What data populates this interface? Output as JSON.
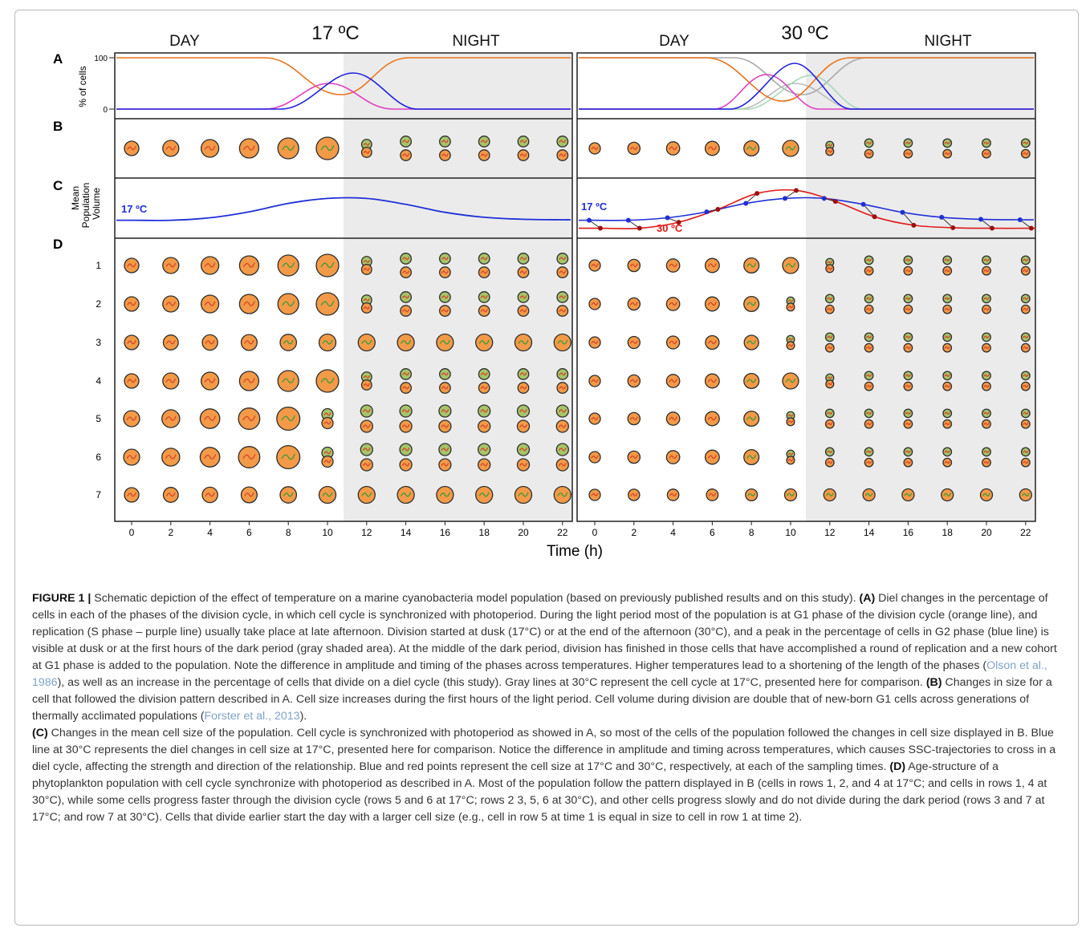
{
  "figure": {
    "panel_labels": [
      "A",
      "B",
      "C",
      "D"
    ],
    "left": {
      "temperature": "17 ºC",
      "day_label": "DAY",
      "night_label": "NIGHT"
    },
    "right": {
      "temperature": "30 ºC",
      "day_label": "DAY",
      "night_label": "NIGHT"
    },
    "a_ylabel": "% of cells",
    "a_ticks": [
      "100",
      "0"
    ],
    "c_ylabel_line1": "Mean",
    "c_ylabel_line2": "Population",
    "c_ylabel_line3": "Volume",
    "c_left_series_label": "17 ºC",
    "c_right_label_17": "17 ºC",
    "c_right_label_30": "30 ºC",
    "row_labels": [
      "1",
      "2",
      "3",
      "4",
      "5",
      "6",
      "7"
    ],
    "time_ticks": [
      "0",
      "2",
      "4",
      "6",
      "8",
      "10",
      "12",
      "14",
      "16",
      "18",
      "20",
      "22"
    ],
    "xlabel": "Time (h)"
  },
  "chart_data": {
    "type": "line",
    "panel": "C",
    "x": [
      0,
      2,
      4,
      6,
      8,
      10,
      12,
      14,
      16,
      18,
      20,
      22
    ],
    "series": [
      {
        "name": "17 ºC",
        "values": [
          0.28,
          0.28,
          0.33,
          0.45,
          0.62,
          0.72,
          0.72,
          0.6,
          0.44,
          0.34,
          0.3,
          0.29
        ]
      },
      {
        "name": "30 ºC",
        "values": [
          0.12,
          0.12,
          0.24,
          0.5,
          0.82,
          0.88,
          0.66,
          0.35,
          0.18,
          0.13,
          0.12,
          0.12
        ]
      }
    ],
    "xlabel": "Time (h)"
  },
  "colors": {
    "g1": "#e8731a",
    "s": "#e040c0",
    "g2": "#2020e0",
    "gray_ref": "#a9a9a9",
    "c17": "#1f2fd6",
    "c30": "#e01818",
    "night": "#ebebeb",
    "cell_orange": "#f29a47",
    "cell_green": "#a6c46a"
  },
  "caption": {
    "label": "FIGURE 1 |",
    "p1": " Schematic depiction of the effect of temperature on a marine cyanobacteria model population (based on previously published results and on this study). ",
    "a_label": "(A)",
    "a_text": " Diel changes in the percentage of cells in each of the phases of the division cycle, in which cell cycle is synchronized with photoperiod. During the light period most of the population is at G1 phase of the division cycle (orange line), and replication (S phase – purple line) usually take place at late afternoon. Division started at dusk (17°C) or at the end of the afternoon (30°C), and a peak in the percentage of cells in G2 phase (blue line) is visible at dusk or at the first hours of the dark period (gray shaded area). At the middle of the dark period, division has finished in those cells that have accomplished a round of replication and a new cohort at G1 phase is added to the population. Note the difference in amplitude and timing of the phases across temperatures. Higher temperatures lead to a shortening of the length of the phases (",
    "a_ref": "Olson et al., 1986",
    "a_text2": "), as well as an increase in the percentage of cells that divide on a diel cycle (this study). Gray lines at 30°C represent the cell cycle at 17°C, presented here for comparison. ",
    "b_label": "(B)",
    "b_text": " Changes in size for a cell that followed the division pattern described in A. Cell size increases during the first hours of the light period. Cell volume during division are double that of new-born G1 cells across generations of thermally acclimated populations (",
    "b_ref": "Forster et al., 2013",
    "b_text2": ").",
    "c_label": "(C)",
    "c_text": " Changes in the mean cell size of the population. Cell cycle is synchronized with photoperiod as showed in A, so most of the cells of the population followed the changes in cell size displayed in B. Blue line at 30°C represents the diel changes in cell size at 17°C, presented here for comparison. Notice the difference in amplitude and timing across temperatures, which causes SSC-trajectories to cross in a diel cycle, affecting the strength and direction of the relationship. Blue and red points represent the cell size at 17°C and 30°C, respectively, at each of the sampling times. ",
    "d_label": "(D)",
    "d_text": " Age-structure of a phytoplankton population with cell cycle synchronize with photoperiod as described in A. Most of the population follow the pattern displayed in B (cells in rows 1, 2, and 4 at 17°C; and cells in rows 1, 4 at 30°C), while some cells progress faster through the division cycle (rows 5 and 6 at 17°C; rows 2 3, 5, 6 at 30°C), and other cells progress slowly and do not divide during the dark period (rows 3 and 7 at 17°C; and row 7 at 30°C). Cells that divide earlier start the day with a larger cell size (e.g., cell in row 5 at time 1 is equal in size to cell in row 1 at time 2)."
  }
}
